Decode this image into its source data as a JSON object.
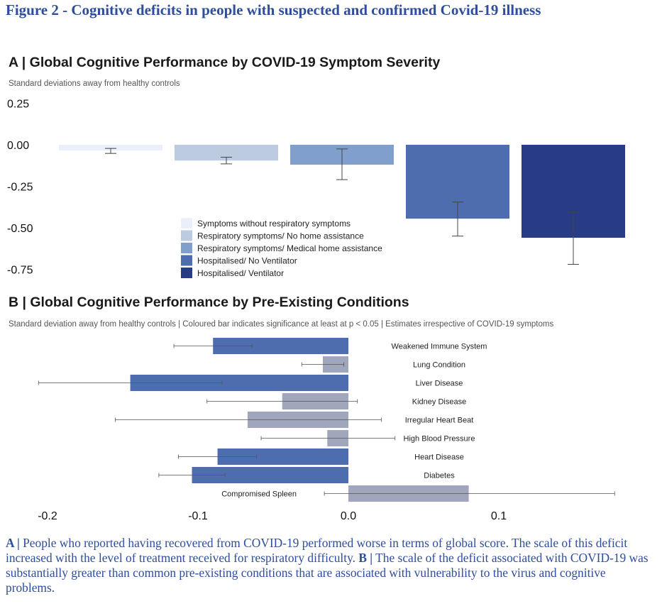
{
  "figure": {
    "title": "Figure 2 - Cognitive deficits in people with suspected and confirmed Covid-19 illness"
  },
  "panel_a": {
    "title": "A | Global Cognitive Performance by COVID-19 Symptom Severity",
    "subtitle": "Standard deviations away from healthy controls"
  },
  "panel_b": {
    "title": "B | Global Cognitive Performance by Pre-Existing Conditions",
    "subtitle": "Standard deviation away from healthy controls | Coloured bar indicates significance at least at p < 0.05 | Estimates irrespective of COVID-19 symptoms"
  },
  "caption": {
    "a_label": "A |",
    "a_text": " People who reported having recovered from COVID-19 performed worse in terms of global score. The scale of this deficit increased with the level of treatment received for respiratory difficulty. ",
    "b_label": "B |",
    "b_text": " The scale of the deficit associated with COVID-19 was substantially greater than common pre-existing conditions that are associated with vulnerability to the virus and cognitive problems."
  },
  "chart_data": [
    {
      "type": "bar",
      "title": "A | Global Cognitive Performance by COVID-19 Symptom Severity",
      "ylabel": "Standard deviations away from healthy controls",
      "ylim": [
        -0.75,
        0.25
      ],
      "yticks": [
        0.25,
        0.0,
        -0.25,
        -0.5,
        -0.75
      ],
      "ytick_labels": [
        "0.25",
        "0.00",
        "-0.25",
        "-0.50",
        "-0.75"
      ],
      "grid": false,
      "legend_position": "center-left",
      "categories": [
        "Symptoms without respiratory symptoms",
        "Respiratory symptoms/ No home assistance",
        "Respiratory symptoms/ Medical home assistance",
        "Hospitalised/ No Ventilator",
        "Hospitalised/ Ventilator"
      ],
      "values": [
        -0.035,
        -0.095,
        -0.12,
        -0.445,
        -0.56
      ],
      "error_low": [
        -0.052,
        -0.115,
        -0.21,
        -0.55,
        -0.72
      ],
      "error_high": [
        -0.022,
        -0.075,
        -0.025,
        -0.345,
        -0.405
      ],
      "colors": [
        "#eaeffb",
        "#bccbe0",
        "#809fcc",
        "#4d6dae",
        "#283c86"
      ]
    },
    {
      "type": "bar",
      "orientation": "horizontal",
      "title": "B | Global Cognitive Performance by Pre-Existing Conditions",
      "subtitle": "Standard deviation away from healthy controls | Coloured bar indicates significance at least at p < 0.05 | Estimates irrespective of COVID-19 symptoms",
      "xlim": [
        -0.2,
        0.18
      ],
      "xticks": [
        -0.2,
        -0.1,
        0.0,
        0.1
      ],
      "xtick_labels": [
        "-0.2",
        "-0.1",
        "0.0",
        "0.1"
      ],
      "grid": false,
      "categories": [
        "Weakened Immune System",
        "Lung Condition",
        "Liver Disease",
        "Kidney Disease",
        "Irregular Heart Beat",
        "High Blood Pressure",
        "Heart Disease",
        "Diabetes",
        "Compromised Spleen"
      ],
      "values": [
        -0.09,
        -0.017,
        -0.145,
        -0.044,
        -0.067,
        -0.014,
        -0.087,
        -0.104,
        0.08
      ],
      "error_low": [
        -0.116,
        -0.031,
        -0.206,
        -0.094,
        -0.155,
        -0.058,
        -0.113,
        -0.126,
        -0.016
      ],
      "error_high": [
        -0.064,
        -0.003,
        -0.084,
        0.006,
        0.022,
        0.031,
        -0.061,
        -0.082,
        0.177
      ],
      "significant": [
        true,
        false,
        true,
        false,
        false,
        false,
        true,
        true,
        false
      ],
      "colors": {
        "significant": "#4d6dae",
        "not_significant": "#a0a6bb"
      }
    }
  ]
}
